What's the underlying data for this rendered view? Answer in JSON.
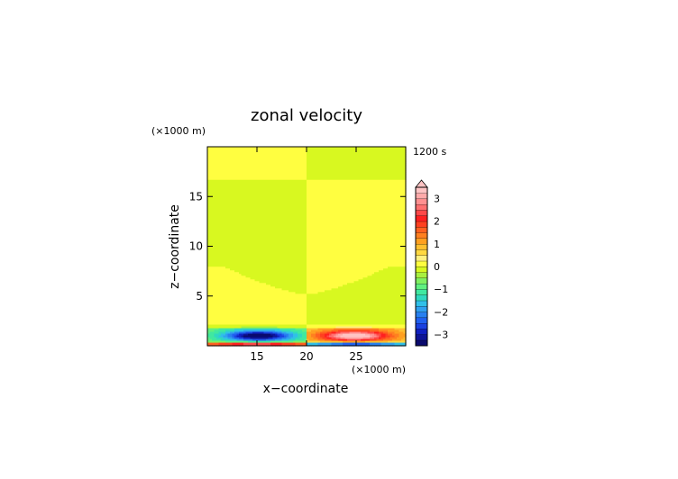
{
  "chart_data": {
    "type": "heatmap",
    "title": "zonal velocity",
    "xlabel": "x−coordinate",
    "ylabel": "z−coordinate",
    "x_unit": "(×1000 m)",
    "y_unit": "(×1000 m)",
    "time_label": "1200 s",
    "xlim": [
      10,
      30
    ],
    "ylim": [
      0,
      20
    ],
    "x_ticks": [
      "15",
      "20",
      "25"
    ],
    "x_tick_values": [
      15,
      20,
      25
    ],
    "y_ticks": [
      "5",
      "10",
      "15"
    ],
    "y_tick_values": [
      5,
      10,
      15
    ],
    "colorbar": {
      "levels": [
        -3.5,
        -3.25,
        -3,
        -2.75,
        -2.5,
        -2.25,
        -2,
        -1.75,
        -1.5,
        -1.25,
        -1,
        -0.75,
        -0.5,
        -0.25,
        0,
        0.25,
        0.5,
        0.75,
        1,
        1.25,
        1.5,
        1.75,
        2,
        2.25,
        2.5,
        2.75,
        3,
        3.25,
        3.5
      ],
      "colors": [
        "#0a0a6e",
        "#0e1496",
        "#1020c0",
        "#1a40e0",
        "#2060f0",
        "#2880f0",
        "#30a0f0",
        "#30c0e8",
        "#30d8c0",
        "#40e8a0",
        "#60f080",
        "#80f060",
        "#a8f040",
        "#d8f820",
        "#fffe40",
        "#fff080",
        "#ffd840",
        "#ffc030",
        "#ffa020",
        "#ff8020",
        "#ff6020",
        "#ff4020",
        "#ff2020",
        "#ff4848",
        "#ff7070",
        "#ff9090",
        "#ffaaaa",
        "#ffc4c4"
      ],
      "tick_labels": [
        "3",
        "2",
        "1",
        "0",
        "−1",
        "−2",
        "−3"
      ],
      "tick_values": [
        3,
        2,
        1,
        0,
        -1,
        -2,
        -3
      ],
      "extend": "max"
    },
    "field_description": "Antisymmetric about x=20: left half yellow (positive) from 0-8 km and 17-20 km, green (near-zero negative) 8-17 km; right half mirror with opposite sign. Near-surface jets: blue (−2) at x~15 z~0.5 km, red (+2) at x~24 z~0.5 km, thin bottom row red on left and blue on right."
  }
}
